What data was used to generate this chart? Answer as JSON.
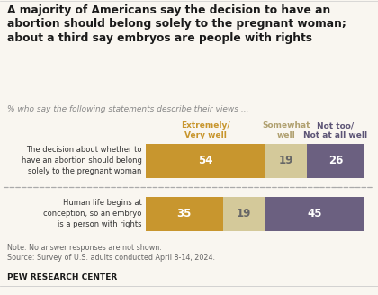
{
  "title": "A majority of Americans say the decision to have an\nabortion should belong solely to the pregnant woman;\nabout a third say embryos are people with rights",
  "subtitle": "% who say the following statements describe their views ...",
  "categories": [
    "The decision about whether to\nhave an abortion should belong\nsolely to the pregnant woman",
    "Human life begins at\nconception, so an embryo\nis a person with rights"
  ],
  "col_labels": [
    "Extremely/\nVery well",
    "Somewhat\nwell",
    "Not too/\nNot at all well"
  ],
  "col_label_colors": [
    "#C8962E",
    "#B0A070",
    "#5C5475"
  ],
  "values": [
    [
      54,
      19,
      26
    ],
    [
      35,
      19,
      45
    ]
  ],
  "bar_colors": [
    "#C8962E",
    "#D4C99A",
    "#6B6080"
  ],
  "text_colors": [
    "#ffffff",
    "#666666",
    "#ffffff"
  ],
  "note": "Note: No answer responses are not shown.\nSource: Survey of U.S. adults conducted April 8-14, 2024.",
  "footer": "PEW RESEARCH CENTER",
  "background_color": "#f9f6f0"
}
